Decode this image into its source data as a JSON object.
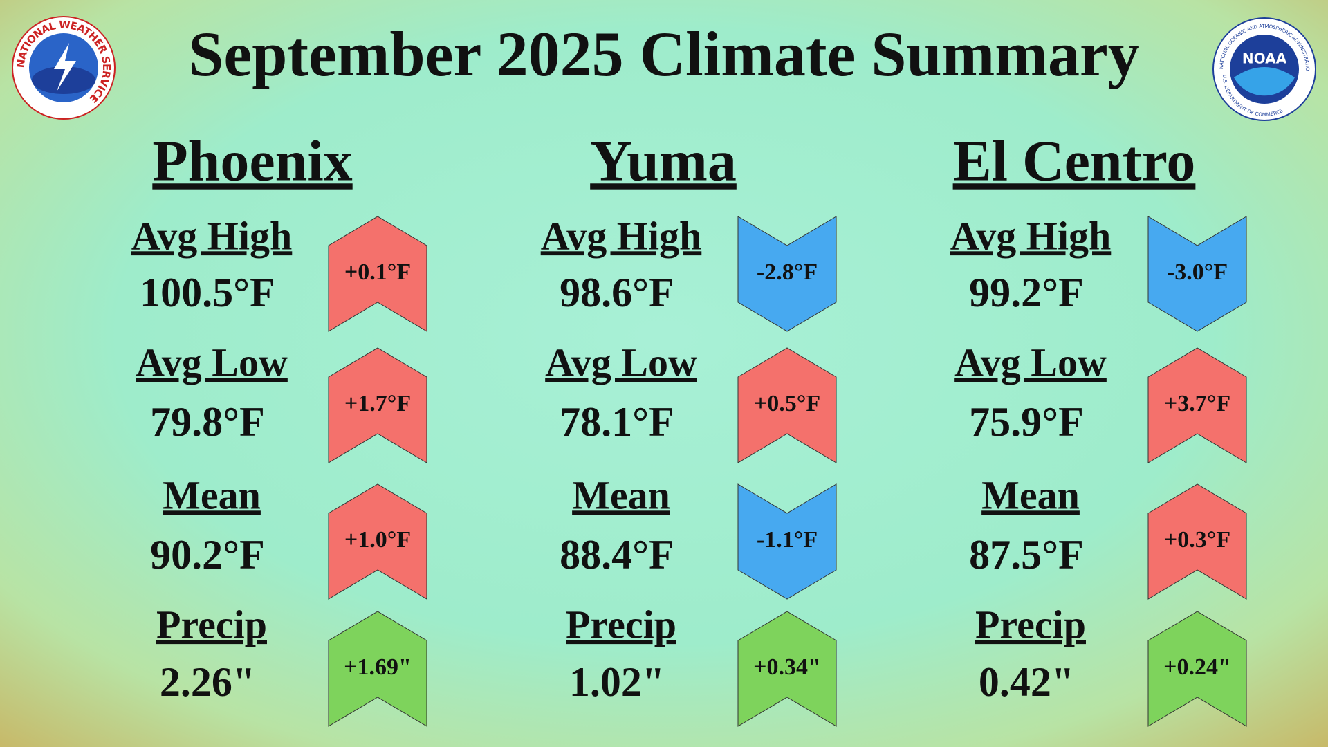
{
  "title": "September 2025 Climate Summary",
  "logos": {
    "nws": "NATIONAL WEATHER SERVICE",
    "noaa": {
      "name": "NOAA",
      "ring": "NATIONAL OCEANIC AND ATMOSPHERIC ADMINISTRATION",
      "bottom": "U.S. DEPARTMENT OF COMMERCE"
    }
  },
  "cities": [
    {
      "name": "Phoenix",
      "metrics": [
        {
          "label": "Avg High",
          "value": "100.5°F",
          "departure": "+0.1°F",
          "color": "#f4716c"
        },
        {
          "label": "Avg Low",
          "value": "79.8°F",
          "departure": "+1.7°F",
          "color": "#f4716c"
        },
        {
          "label": "Mean",
          "value": "90.2°F",
          "departure": "+1.0°F",
          "color": "#f4716c"
        },
        {
          "label": "Precip",
          "value": "2.26\"",
          "departure": "+1.69\"",
          "color": "#7ed35c"
        }
      ]
    },
    {
      "name": "Yuma",
      "metrics": [
        {
          "label": "Avg High",
          "value": "98.6°F",
          "departure": "-2.8°F",
          "color": "#47a9f0"
        },
        {
          "label": "Avg Low",
          "value": "78.1°F",
          "departure": "+0.5°F",
          "color": "#f4716c"
        },
        {
          "label": "Mean",
          "value": "88.4°F",
          "departure": "-1.1°F",
          "color": "#47a9f0"
        },
        {
          "label": "Precip",
          "value": "1.02\"",
          "departure": "+0.34\"",
          "color": "#7ed35c"
        }
      ]
    },
    {
      "name": "El Centro",
      "metrics": [
        {
          "label": "Avg High",
          "value": "99.2°F",
          "departure": "-3.0°F",
          "color": "#47a9f0"
        },
        {
          "label": "Avg Low",
          "value": "75.9°F",
          "departure": "+3.7°F",
          "color": "#f4716c"
        },
        {
          "label": "Mean",
          "value": "87.5°F",
          "departure": "+0.3°F",
          "color": "#f4716c"
        },
        {
          "label": "Precip",
          "value": "0.42\"",
          "departure": "+0.24\"",
          "color": "#7ed35c"
        }
      ]
    }
  ]
}
